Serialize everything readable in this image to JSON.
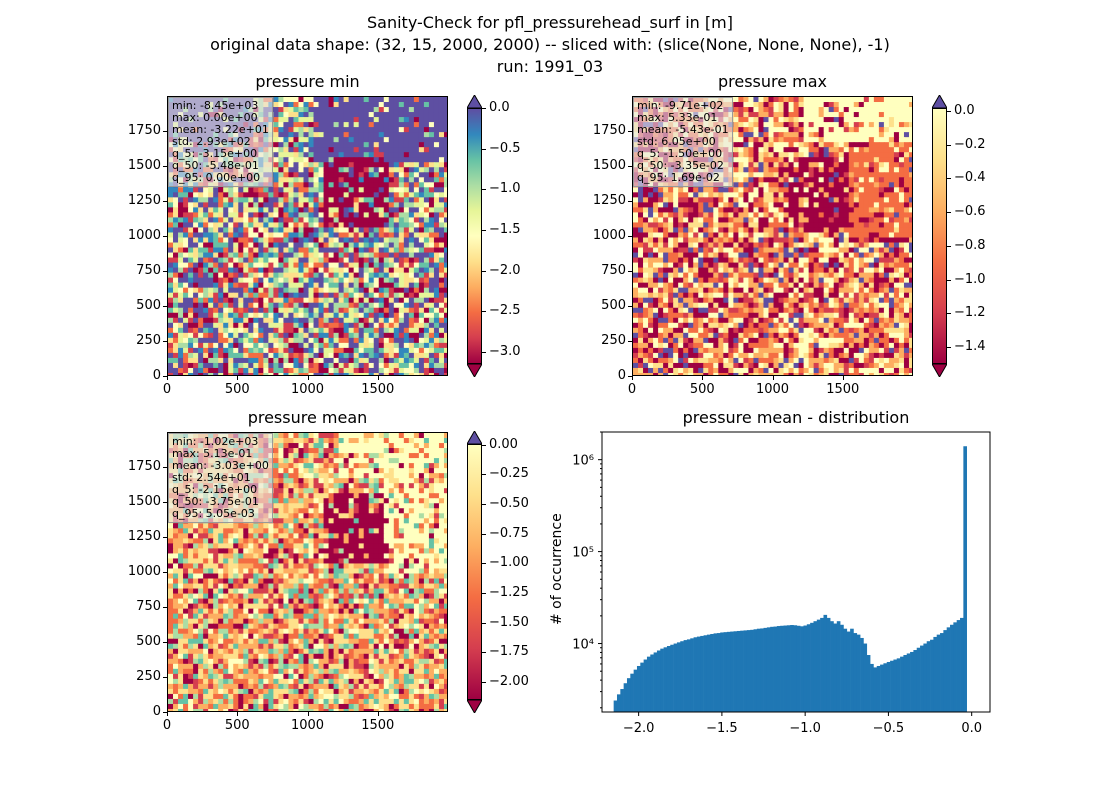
{
  "header": {
    "line1": "Sanity-Check for pfl_pressurehead_surf in [m]",
    "line2": "original data shape: (32, 15, 2000, 2000) -- sliced with: (slice(None, None, None), -1)",
    "line3": "run: 1991_03"
  },
  "panels": [
    {
      "title": "pressure min",
      "stats": [
        "min: -8.45e+03",
        "max: 0.00e+00",
        "mean: -3.22e+01",
        "std: 2.93e+02",
        "q_5: -3.15e+00",
        "q_50: -5.48e-01",
        "q_95: 0.00e+00"
      ],
      "cbar_ticks": [
        "0.0",
        "−0.5",
        "−1.0",
        "−1.5",
        "−2.0",
        "−2.5",
        "−3.0"
      ],
      "cbar_range": [
        -3.15,
        0.0
      ]
    },
    {
      "title": "pressure max",
      "stats": [
        "min: -9.71e+02",
        "max: 5.33e-01",
        "mean: -5.43e-01",
        "std: 6.05e+00",
        "q_5: -1.50e+00",
        "q_50: -3.35e-02",
        "q_95: 1.69e-02"
      ],
      "cbar_ticks": [
        "0.0",
        "−0.2",
        "−0.4",
        "−0.6",
        "−0.8",
        "−1.0",
        "−1.2",
        "−1.4"
      ],
      "cbar_range": [
        -1.5,
        0.017
      ]
    },
    {
      "title": "pressure mean",
      "stats": [
        "min: -1.02e+03",
        "max: 5.13e-01",
        "mean: -3.03e+00",
        "std: 2.54e+01",
        "q_5: -2.15e+00",
        "q_50: -3.75e-01",
        "q_95: 5.05e-03"
      ],
      "cbar_ticks": [
        "0.00",
        "−0.25",
        "−0.50",
        "−0.75",
        "−1.00",
        "−1.25",
        "−1.50",
        "−1.75",
        "−2.00"
      ],
      "cbar_range": [
        -2.15,
        0.005
      ]
    }
  ],
  "map_axes": {
    "x_ticks": [
      "0",
      "500",
      "1000",
      "1500"
    ],
    "y_ticks": [
      "0",
      "250",
      "500",
      "750",
      "1000",
      "1250",
      "1500",
      "1750"
    ],
    "xlim": [
      0,
      2000
    ],
    "ylim": [
      0,
      2000
    ]
  },
  "colormap": "Spectral",
  "colors": {
    "over": "#5e4fa2",
    "under": "#9e0142",
    "hist_bar": "#1f77b4"
  },
  "chart_data": {
    "type": "bar",
    "title": "pressure mean - distribution",
    "xlabel": "",
    "ylabel": "# of occurrence",
    "yscale": "log",
    "x_ticks": [
      "−2.0",
      "−1.5",
      "−1.0",
      "−0.5",
      "0.0"
    ],
    "y_ticks": [
      "10⁴",
      "10⁵",
      "10⁶"
    ],
    "xlim": [
      -2.22,
      0.11
    ],
    "ylim": [
      1800,
      2000000
    ],
    "bin_centers": [
      -2.14,
      -2.12,
      -2.1,
      -2.08,
      -2.06,
      -2.04,
      -2.02,
      -2.0,
      -1.98,
      -1.96,
      -1.94,
      -1.92,
      -1.9,
      -1.88,
      -1.86,
      -1.84,
      -1.82,
      -1.8,
      -1.78,
      -1.76,
      -1.74,
      -1.72,
      -1.7,
      -1.68,
      -1.66,
      -1.64,
      -1.62,
      -1.6,
      -1.58,
      -1.56,
      -1.54,
      -1.52,
      -1.5,
      -1.48,
      -1.46,
      -1.44,
      -1.42,
      -1.4,
      -1.38,
      -1.36,
      -1.34,
      -1.32,
      -1.3,
      -1.28,
      -1.26,
      -1.24,
      -1.22,
      -1.2,
      -1.18,
      -1.16,
      -1.14,
      -1.12,
      -1.1,
      -1.08,
      -1.06,
      -1.04,
      -1.02,
      -1.0,
      -0.98,
      -0.96,
      -0.94,
      -0.92,
      -0.9,
      -0.88,
      -0.86,
      -0.84,
      -0.82,
      -0.8,
      -0.78,
      -0.76,
      -0.74,
      -0.72,
      -0.7,
      -0.68,
      -0.66,
      -0.64,
      -0.62,
      -0.6,
      -0.58,
      -0.56,
      -0.54,
      -0.52,
      -0.5,
      -0.48,
      -0.46,
      -0.44,
      -0.42,
      -0.4,
      -0.38,
      -0.36,
      -0.34,
      -0.32,
      -0.3,
      -0.28,
      -0.26,
      -0.24,
      -0.22,
      -0.2,
      -0.18,
      -0.16,
      -0.14,
      -0.12,
      -0.1,
      -0.08,
      -0.06,
      -0.04,
      -0.02,
      0.0
    ],
    "values": [
      2400,
      2800,
      3200,
      3700,
      4200,
      4700,
      5200,
      5700,
      6200,
      6700,
      7200,
      7600,
      8000,
      8400,
      8800,
      9100,
      9400,
      9700,
      10000,
      10300,
      10600,
      10900,
      11100,
      11400,
      11700,
      11900,
      12100,
      12300,
      12500,
      12700,
      12900,
      13000,
      13200,
      13300,
      13400,
      13500,
      13600,
      13700,
      13800,
      13900,
      14000,
      14100,
      14300,
      14500,
      14600,
      14800,
      15000,
      15200,
      15300,
      15500,
      15600,
      15700,
      15800,
      15900,
      15800,
      15600,
      15400,
      15700,
      16200,
      16800,
      17500,
      18200,
      19000,
      20500,
      19000,
      17500,
      16500,
      17500,
      16000,
      14500,
      13500,
      14500,
      13000,
      12500,
      11500,
      10000,
      7500,
      6000,
      5500,
      5700,
      5900,
      6100,
      6300,
      6500,
      6700,
      6900,
      7200,
      7500,
      7800,
      8100,
      8500,
      9000,
      9500,
      10000,
      10600,
      11000,
      11800,
      12500,
      13000,
      14000,
      15000,
      16000,
      17000,
      18000,
      19000,
      1400000
    ]
  }
}
